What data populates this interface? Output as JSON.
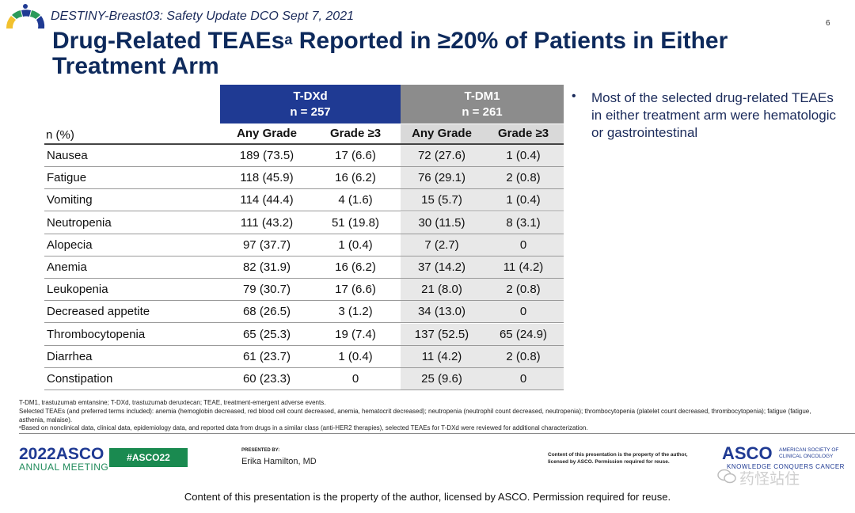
{
  "header": {
    "study_line": "DESTINY-Breast03: Safety Update DCO Sept 7, 2021",
    "page_number": "6",
    "title_part1": "Drug-Related TEAEs",
    "title_sup": "a",
    "title_part2": " Reported in ≥20% of Patients in Either Treatment Arm"
  },
  "table": {
    "arms": [
      {
        "name": "T-DXd",
        "n": "n = 257",
        "color": "#1f3a93"
      },
      {
        "name": "T-DM1",
        "n": "n = 261",
        "color": "#8c8c8c"
      }
    ],
    "row_label_header": "n (%)",
    "columns": [
      "Any Grade",
      "Grade ≥3",
      "Any Grade",
      "Grade ≥3"
    ],
    "rows": [
      {
        "name": "Nausea",
        "v": [
          "189 (73.5)",
          "17 (6.6)",
          "72 (27.6)",
          "1 (0.4)"
        ]
      },
      {
        "name": "Fatigue",
        "v": [
          "118 (45.9)",
          "16 (6.2)",
          "76 (29.1)",
          "2 (0.8)"
        ]
      },
      {
        "name": "Vomiting",
        "v": [
          "114 (44.4)",
          "4 (1.6)",
          "15 (5.7)",
          "1 (0.4)"
        ]
      },
      {
        "name": "Neutropenia",
        "v": [
          "111 (43.2)",
          "51 (19.8)",
          "30 (11.5)",
          "8 (3.1)"
        ]
      },
      {
        "name": "Alopecia",
        "v": [
          "97 (37.7)",
          "1 (0.4)",
          "7 (2.7)",
          "0"
        ]
      },
      {
        "name": "Anemia",
        "v": [
          "82 (31.9)",
          "16 (6.2)",
          "37 (14.2)",
          "11 (4.2)"
        ]
      },
      {
        "name": "Leukopenia",
        "v": [
          "79 (30.7)",
          "17 (6.6)",
          "21 (8.0)",
          "2 (0.8)"
        ]
      },
      {
        "name": "Decreased appetite",
        "v": [
          "68 (26.5)",
          "3 (1.2)",
          "34 (13.0)",
          "0"
        ]
      },
      {
        "name": "Thrombocytopenia",
        "v": [
          "65 (25.3)",
          "19 (7.4)",
          "137 (52.5)",
          "65 (24.9)"
        ]
      },
      {
        "name": "Diarrhea",
        "v": [
          "61 (23.7)",
          "1 (0.4)",
          "11 (4.2)",
          "2 (0.8)"
        ]
      },
      {
        "name": "Constipation",
        "v": [
          "60 (23.3)",
          "0",
          "25 (9.6)",
          "0"
        ]
      }
    ]
  },
  "bullet": {
    "text": "Most of the selected drug-related TEAEs in either treatment arm were hematologic or gastrointestinal"
  },
  "footnotes": {
    "abbrev": "T-DM1, trastuzumab emtansine; T-DXd, trastuzumab deruxtecan; TEAE, treatment-emergent adverse events.",
    "selected": "Selected TEAEs (and preferred terms included): anemia (hemoglobin decreased, red blood cell count decreased, anemia, hematocrit decreased); neutropenia (neutrophil count decreased, neutropenia); thrombocytopenia (platelet count decreased, thrombocytopenia); fatigue (fatigue, asthenia, malaise).",
    "a_note": "ᵃBased on nonclinical data, clinical data, epidemiology data, and reported data from drugs in a similar class (anti-HER2 therapies), selected TEAEs for T-DXd were reviewed for additional characterization."
  },
  "footer": {
    "meeting_year": "2022",
    "meeting_brand": "ASCO",
    "meeting_name": "ANNUAL MEETING",
    "hashtag": "#ASCO22",
    "presented_by_label": "PRESENTED BY:",
    "presenter": "Erika Hamilton,  MD",
    "rights_small": "Content of this presentation is the property of the author, licensed by ASCO. Permission required for reuse.",
    "asco_logo": "ASCO",
    "asco_society": "AMERICAN SOCIETY OF CLINICAL ONCOLOGY",
    "asco_tagline": "KNOWLEDGE CONQUERS CANCER",
    "watermark": "药怪站住",
    "bottom_notice": "Content of this presentation is the property of the author, licensed by ASCO. Permission required for reuse."
  },
  "colors": {
    "title": "#0e2a5c",
    "tdxd_header": "#1f3a93",
    "tdm1_header": "#8c8c8c",
    "hashtag_bg": "#1a8a50"
  }
}
